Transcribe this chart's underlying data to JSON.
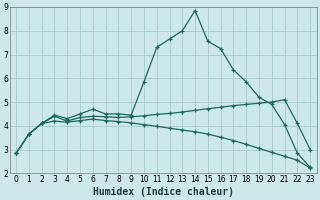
{
  "xlabel": "Humidex (Indice chaleur)",
  "xlim": [
    -0.5,
    23.5
  ],
  "ylim": [
    2,
    9
  ],
  "xticks": [
    0,
    1,
    2,
    3,
    4,
    5,
    6,
    7,
    8,
    9,
    10,
    11,
    12,
    13,
    14,
    15,
    16,
    17,
    18,
    19,
    20,
    21,
    22,
    23
  ],
  "yticks": [
    2,
    3,
    4,
    5,
    6,
    7,
    8,
    9
  ],
  "background_color": "#cde8e8",
  "grid_color": "#aacfcf",
  "line_color": "#1a6b5a",
  "curve1_x": [
    0,
    1,
    2,
    3,
    4,
    5,
    6,
    7,
    8,
    9,
    10,
    11,
    12,
    13,
    14,
    15,
    16,
    17,
    18,
    19,
    20,
    21,
    22,
    23
  ],
  "curve1_y": [
    2.85,
    3.65,
    4.1,
    4.45,
    4.3,
    4.5,
    4.7,
    4.5,
    4.5,
    4.45,
    5.85,
    7.3,
    7.65,
    8.0,
    8.85,
    7.55,
    7.25,
    6.35,
    5.85,
    5.2,
    4.9,
    4.05,
    2.85,
    2.25
  ],
  "curve2_x": [
    0,
    1,
    2,
    3,
    4,
    5,
    6,
    7,
    8,
    9,
    10,
    11,
    12,
    13,
    14,
    15,
    16,
    17,
    18,
    19,
    20,
    21,
    22,
    23
  ],
  "curve2_y": [
    2.85,
    3.65,
    4.1,
    4.4,
    4.2,
    4.35,
    4.4,
    4.38,
    4.35,
    4.38,
    4.42,
    4.48,
    4.52,
    4.58,
    4.65,
    4.72,
    4.78,
    4.85,
    4.9,
    4.95,
    5.0,
    5.1,
    4.1,
    3.0
  ],
  "curve3_x": [
    0,
    1,
    2,
    3,
    4,
    5,
    6,
    7,
    8,
    9,
    10,
    11,
    12,
    13,
    14,
    15,
    16,
    17,
    18,
    19,
    20,
    21,
    22,
    23
  ],
  "curve3_y": [
    2.85,
    3.65,
    4.1,
    4.2,
    4.15,
    4.22,
    4.28,
    4.22,
    4.18,
    4.12,
    4.05,
    3.98,
    3.9,
    3.82,
    3.75,
    3.65,
    3.52,
    3.38,
    3.22,
    3.05,
    2.88,
    2.72,
    2.55,
    2.22
  ]
}
